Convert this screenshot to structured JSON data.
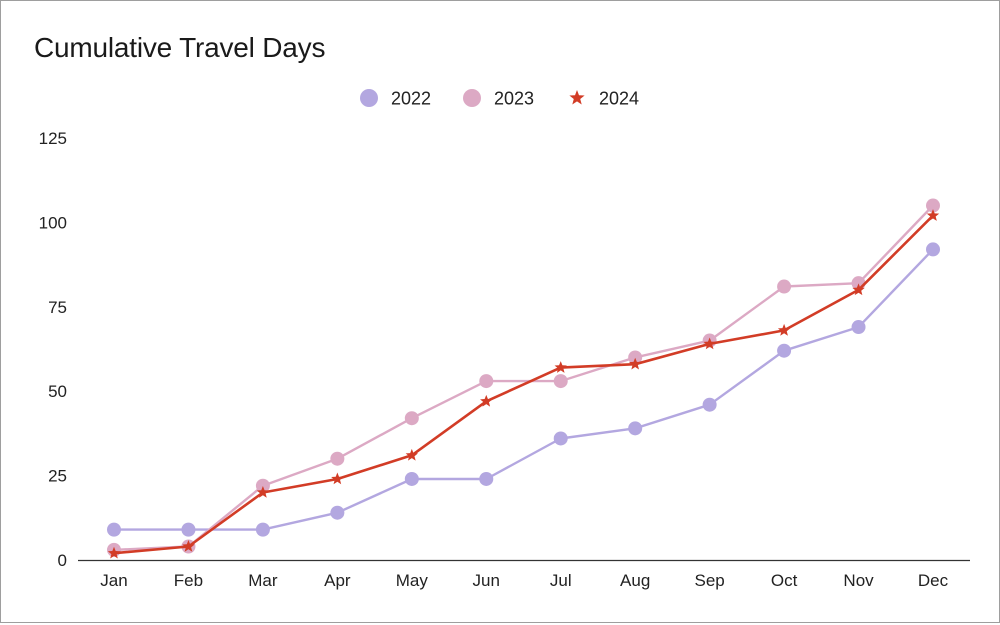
{
  "chart_data": {
    "type": "line",
    "title": "Cumulative Travel Days",
    "xlabel": "",
    "ylabel": "",
    "categories": [
      "Jan",
      "Feb",
      "Mar",
      "Apr",
      "May",
      "Jun",
      "Jul",
      "Aug",
      "Sep",
      "Oct",
      "Nov",
      "Dec"
    ],
    "yticks": [
      0,
      25,
      50,
      75,
      100,
      125
    ],
    "ylim": [
      0,
      125
    ],
    "grid": false,
    "legend_position": "top",
    "series": [
      {
        "name": "2022",
        "color": "#b3a7e0",
        "marker": "circle",
        "values": [
          9,
          9,
          9,
          14,
          24,
          24,
          36,
          39,
          46,
          62,
          69,
          92
        ]
      },
      {
        "name": "2023",
        "color": "#dca9c4",
        "marker": "circle",
        "values": [
          3,
          4,
          22,
          30,
          42,
          53,
          53,
          60,
          65,
          81,
          82,
          105
        ]
      },
      {
        "name": "2024",
        "color": "#d23c26",
        "marker": "star",
        "values": [
          2,
          4,
          20,
          24,
          31,
          47,
          57,
          58,
          64,
          68,
          80,
          102
        ]
      }
    ]
  }
}
